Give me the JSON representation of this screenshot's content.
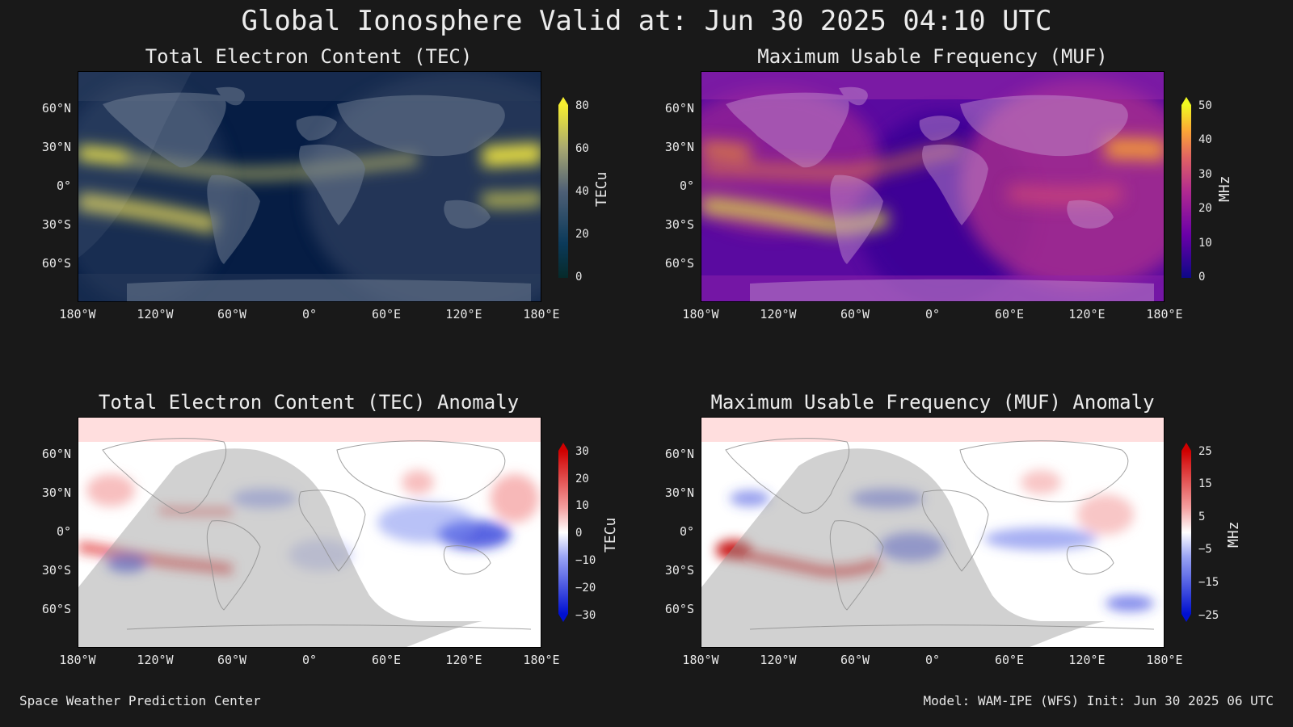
{
  "title": "Global Ionosphere Valid at: Jun 30 2025 04:10 UTC",
  "footer": {
    "left": "Space Weather Prediction Center",
    "right": "Model: WAM-IPE (WFS) Init: Jun 30 2025 06 UTC"
  },
  "axes": {
    "lat_ticks": [
      "60°N",
      "30°N",
      "0°",
      "30°S",
      "60°S"
    ],
    "lon_ticks": [
      "180°W",
      "120°W",
      "60°W",
      "0°",
      "60°E",
      "120°E",
      "180°E"
    ]
  },
  "panels": [
    {
      "title": "Total Electron Content (TEC)",
      "unit": "TECu",
      "colorbar_ticks": [
        "80",
        "60",
        "40",
        "20",
        "0"
      ],
      "colormap": "dark-blue-to-yellow",
      "colors": {
        "low": "#0a1f45",
        "mid": "#55647a",
        "high": "#f2e640"
      }
    },
    {
      "title": "Maximum Usable Frequency (MUF)",
      "unit": "MHz",
      "colorbar_ticks": [
        "50",
        "40",
        "30",
        "20",
        "10",
        "0"
      ],
      "colormap": "plasma",
      "colors": {
        "low": "#1a0a6a",
        "mid": "#b02a9a",
        "high": "#f0f030"
      }
    },
    {
      "title": "Total Electron Content (TEC) Anomaly",
      "unit": "TECu",
      "colorbar_ticks": [
        "30",
        "20",
        "10",
        "0",
        "−10",
        "−20",
        "−30"
      ],
      "colormap": "blue-white-red",
      "colors": {
        "low": "#0018e0",
        "mid": "#ffffff",
        "high": "#d80000"
      }
    },
    {
      "title": "Maximum Usable Frequency (MUF) Anomaly",
      "unit": "MHz",
      "colorbar_ticks": [
        "25",
        "15",
        "5",
        "−5",
        "−15",
        "−25"
      ],
      "colormap": "blue-white-red",
      "colors": {
        "low": "#0018e0",
        "mid": "#ffffff",
        "high": "#d80000"
      }
    }
  ]
}
